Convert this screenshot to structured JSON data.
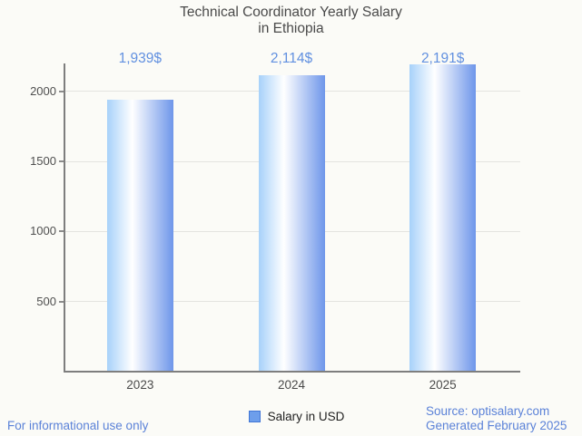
{
  "title": {
    "line1": "Technical Coordinator Yearly Salary",
    "line2": "in Ethiopia"
  },
  "chart_data": {
    "type": "bar",
    "title": "Technical Coordinator Yearly Salary in Ethiopia",
    "categories": [
      "2023",
      "2024",
      "2025"
    ],
    "series": [
      {
        "name": "Salary in USD",
        "values": [
          1939,
          2114,
          2191
        ]
      }
    ],
    "value_labels": [
      "1,939$",
      "2,114$",
      "2,191$"
    ],
    "xlabel": "",
    "ylabel": "",
    "ylim": [
      0,
      2200
    ],
    "yticks": [
      500,
      1000,
      1500,
      2000
    ],
    "ytick_labels": [
      "500",
      "1000",
      "1500",
      "2000"
    ],
    "grid": true,
    "legend_position": "bottom"
  },
  "legend": {
    "label": "Salary in USD",
    "swatch_color": "#6D9EEB",
    "swatch_border": "#4176D6"
  },
  "footer": {
    "left_note": "For informational use only",
    "source_line1": "Source: optisalary.com",
    "source_line2": "Generated February 2025"
  },
  "colors": {
    "background": "#FBFBF7",
    "title_text": "#4A4A4A",
    "axis": "#7E7E7E",
    "gridline": "#E4E4E0",
    "tick_text": "#4F4F4F",
    "value_label_text": "#6190E0",
    "footer_text": "#5B82D8",
    "bar_gradient": [
      "#A7D1FA",
      "#FFFFFF",
      "#6E96EA"
    ]
  }
}
